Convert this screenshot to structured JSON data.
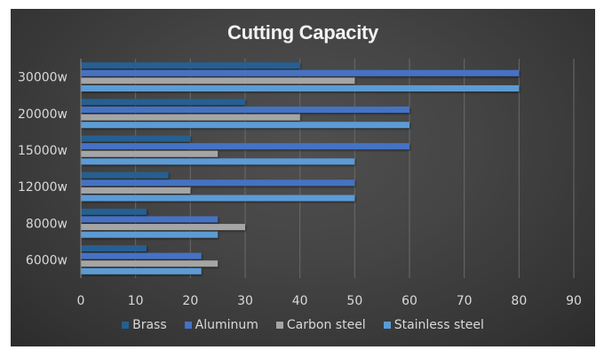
{
  "chart_data": {
    "type": "bar",
    "orientation": "horizontal",
    "title": "Cutting Capacity",
    "xlabel": "",
    "ylabel": "",
    "categories": [
      "30000w",
      "20000w",
      "15000w",
      "12000w",
      "8000w",
      "6000w"
    ],
    "series": [
      {
        "name": "Brass",
        "color": "#255e91",
        "values": [
          40,
          30,
          20,
          16,
          12,
          12
        ]
      },
      {
        "name": "Aluminum",
        "color": "#4472c4",
        "values": [
          80,
          60,
          60,
          50,
          25,
          22
        ]
      },
      {
        "name": "Carbon steel",
        "color": "#a5a5a5",
        "values": [
          50,
          40,
          25,
          20,
          30,
          25
        ]
      },
      {
        "name": "Stainless steel",
        "color": "#5b9bd5",
        "values": [
          80,
          60,
          50,
          50,
          25,
          22
        ]
      }
    ],
    "xlim": [
      0,
      90
    ],
    "xticks": [
      "0",
      "10",
      "20",
      "30",
      "40",
      "50",
      "60",
      "70",
      "80",
      "90"
    ],
    "grid": true,
    "legend_position": "bottom"
  }
}
